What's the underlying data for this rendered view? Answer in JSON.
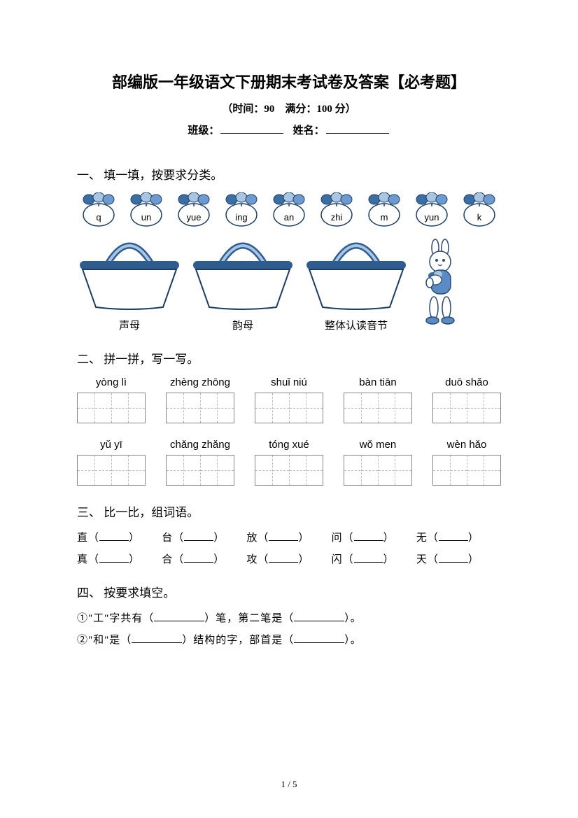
{
  "header": {
    "title": "部编版一年级语文下册期末考试卷及答案【必考题】",
    "subtitle": "（时间：90　满分：100 分）",
    "class_label": "班级：",
    "name_label": "姓名："
  },
  "section1": {
    "title": "一、 填一填，按要求分类。",
    "items": [
      "q",
      "un",
      "yue",
      "ing",
      "an",
      "zhi",
      "m",
      "yun",
      "k"
    ],
    "baskets": [
      "声母",
      "韵母",
      "整体认读音节"
    ],
    "colors": {
      "leaf_dark": "#3a6ea5",
      "leaf_mid": "#6b9bd1",
      "leaf_light": "#a8c5e4",
      "basket_rim": "#2f5c8f",
      "basket_body": "#ffffff",
      "basket_outline": "#1c3d5f",
      "rabbit_body": "#ffffff",
      "rabbit_outline": "#2a4a6e",
      "rabbit_shirt": "#5a8bc4"
    }
  },
  "section2": {
    "title": "二、 拼一拼，写一写。",
    "row1": [
      "yòng lì",
      "zhèng zhōng",
      "shuǐ niú",
      "bàn tiān",
      "duō shǎo"
    ],
    "row2": [
      "yǔ  yī",
      "chǎng zhǎng",
      "tóng xué",
      "wǒ men",
      "wèn hǎo"
    ]
  },
  "section3": {
    "title": "三、 比一比，组词语。",
    "row1": [
      "直",
      "台",
      "放",
      "问",
      "无"
    ],
    "row2": [
      "真",
      "合",
      "攻",
      "闪",
      "天"
    ]
  },
  "section4": {
    "title": "四、 按要求填空。",
    "line1_a": "①\"工\"字共有（",
    "line1_b": "）笔，第二笔是（",
    "line1_c": "）。",
    "line2_a": "②\"和\"是（",
    "line2_b": "）结构的字，部首是（",
    "line2_c": "）。"
  },
  "footer": {
    "page": "1 / 5"
  }
}
